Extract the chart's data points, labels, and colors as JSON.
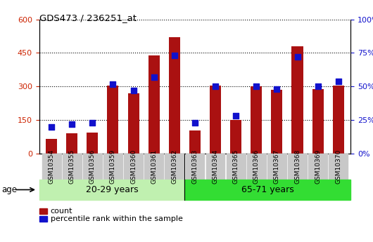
{
  "title": "GDS473 / 236251_at",
  "categories": [
    "GSM10354",
    "GSM10355",
    "GSM10356",
    "GSM10359",
    "GSM10360",
    "GSM10361",
    "GSM10362",
    "GSM10363",
    "GSM10364",
    "GSM10365",
    "GSM10366",
    "GSM10367",
    "GSM10368",
    "GSM10369",
    "GSM10370"
  ],
  "counts": [
    65,
    90,
    95,
    305,
    270,
    440,
    520,
    105,
    305,
    150,
    300,
    285,
    480,
    290,
    305
  ],
  "percentiles": [
    20,
    22,
    23,
    52,
    47,
    57,
    73,
    23,
    50,
    28,
    50,
    48,
    72,
    50,
    54
  ],
  "group1_label": "20-29 years",
  "group2_label": "65-71 years",
  "group1_count": 7,
  "group2_count": 8,
  "age_label": "age",
  "left_ylim": [
    0,
    600
  ],
  "right_ylim": [
    0,
    100
  ],
  "left_yticks": [
    0,
    150,
    300,
    450,
    600
  ],
  "right_yticks": [
    0,
    25,
    50,
    75,
    100
  ],
  "bar_color": "#aa1111",
  "dot_color": "#1111cc",
  "group1_bg": "#c0f0b0",
  "group2_bg": "#33dd33",
  "xticklabel_bg": "#c8c8c8",
  "legend_count": "count",
  "legend_pct": "percentile rank within the sample",
  "bar_width": 0.55,
  "dot_size": 40
}
